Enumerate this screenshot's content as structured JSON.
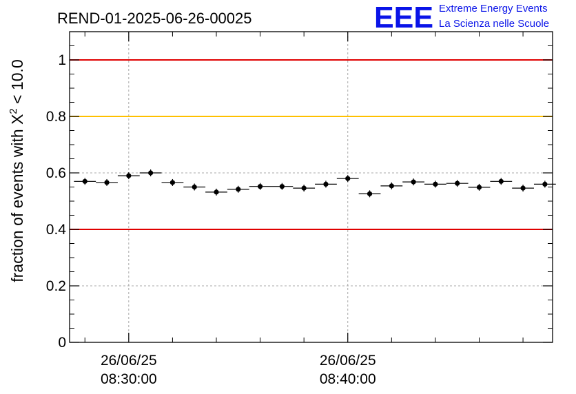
{
  "chart_data": {
    "type": "scatter",
    "title": "REND-01-2025-06-26-00025",
    "ylabel_prefix": "fraction of events with ",
    "ylabel_chi": "X",
    "ylabel_sup": "2",
    "ylabel_suffix": " < 10.0",
    "ylim": [
      0,
      1.1
    ],
    "xlim_minutes": [
      27.3,
      49.35
    ],
    "y_ticks": [
      {
        "value": 0,
        "label": "0"
      },
      {
        "value": 0.2,
        "label": "0.2"
      },
      {
        "value": 0.4,
        "label": "0.4"
      },
      {
        "value": 0.6,
        "label": "0.6"
      },
      {
        "value": 0.8,
        "label": "0.8"
      },
      {
        "value": 1.0,
        "label": "1"
      }
    ],
    "x_ticks": [
      {
        "minute": 30,
        "date": "26/06/25",
        "time": "08:30:00"
      },
      {
        "minute": 40,
        "date": "26/06/25",
        "time": "08:40:00"
      }
    ],
    "grid": true,
    "reference_lines": [
      {
        "y": 1.0,
        "color": "#e00000"
      },
      {
        "y": 0.8,
        "color": "#ffc000"
      },
      {
        "y": 0.4,
        "color": "#e00000"
      }
    ],
    "bin_width_minutes": 1,
    "x_minutes": [
      28,
      29,
      30,
      31,
      32,
      33,
      34,
      35,
      36,
      37,
      38,
      39,
      40,
      41,
      42,
      43,
      44,
      45,
      46,
      47,
      48,
      49
    ],
    "values": [
      0.57,
      0.566,
      0.59,
      0.6,
      0.566,
      0.55,
      0.532,
      0.542,
      0.552,
      0.552,
      0.546,
      0.56,
      0.58,
      0.526,
      0.554,
      0.568,
      0.56,
      0.563,
      0.549,
      0.57,
      0.546,
      0.56
    ],
    "marker_color": "#000000"
  },
  "logo": {
    "mark": "EEE",
    "line1": "Extreme Energy Events",
    "line2": "La Scienza nelle Scuole"
  }
}
